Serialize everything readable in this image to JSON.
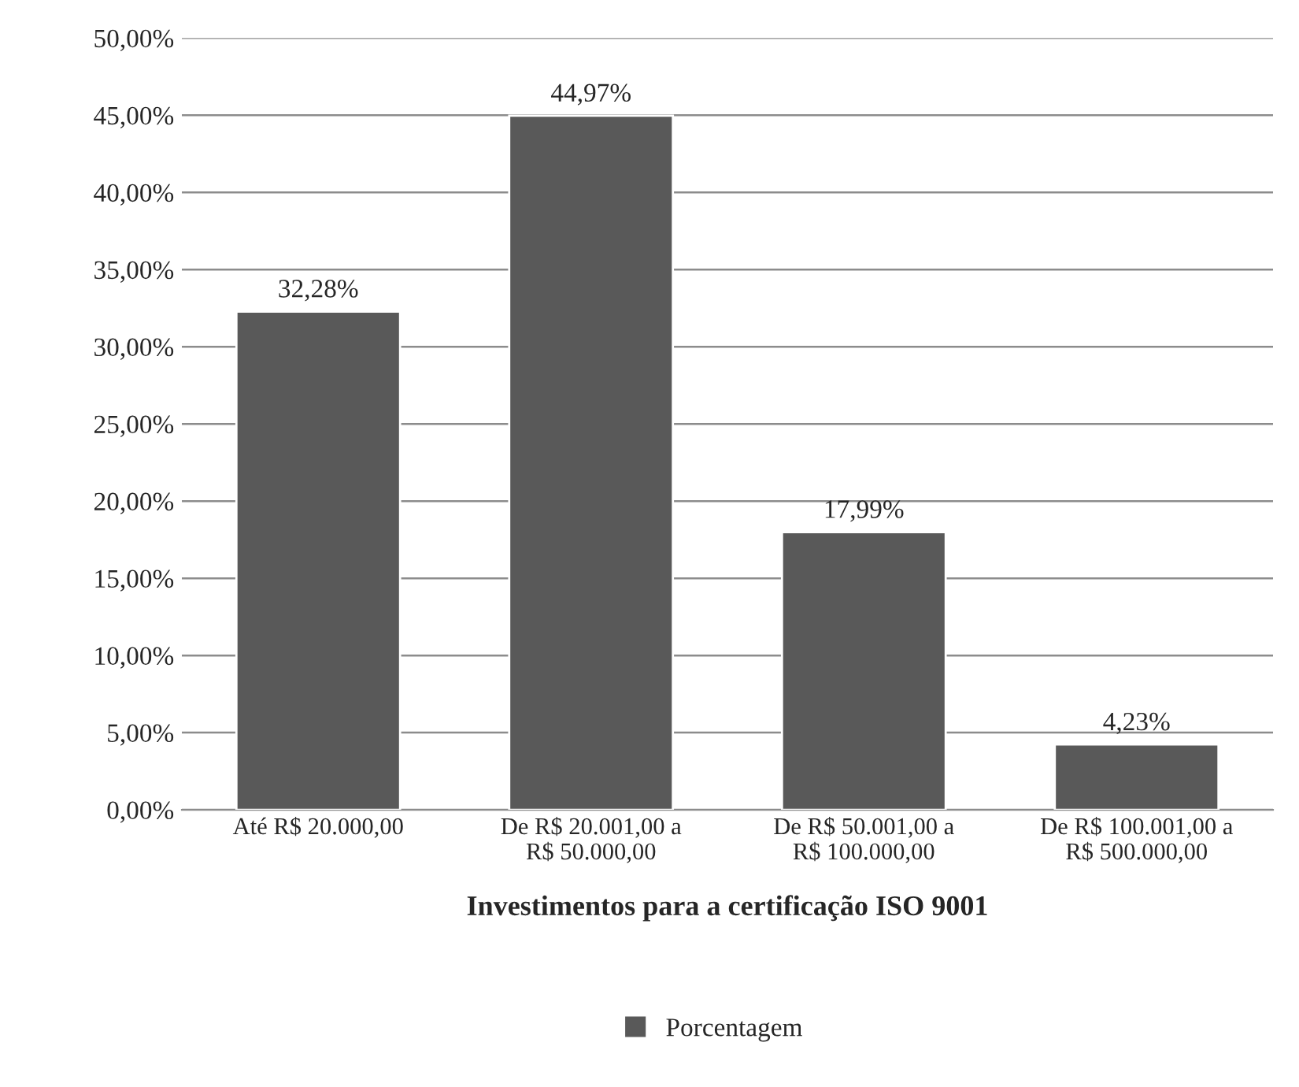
{
  "chart_data": {
    "type": "bar",
    "categories": [
      "Até R$ 20.000,00",
      "De R$ 20.001,00 a\nR$ 50.000,00",
      "De R$ 50.001,00 a\nR$ 100.000,00",
      "De R$ 100.001,00 a\nR$ 500.000,00"
    ],
    "series": [
      {
        "name": "Porcentagem",
        "color": "#595959",
        "values": [
          32.28,
          44.97,
          17.99,
          4.23
        ],
        "value_labels": [
          "32,28%",
          "44,97%",
          "17,99%",
          "4,23%"
        ]
      }
    ],
    "xlabel": "Investimentos para a certificação ISO 9001",
    "ylim": [
      0,
      50
    ],
    "yticks": [
      {
        "value": 0,
        "label": "0,00%"
      },
      {
        "value": 5,
        "label": "5,00%"
      },
      {
        "value": 10,
        "label": "10,00%"
      },
      {
        "value": 15,
        "label": "15,00%"
      },
      {
        "value": 20,
        "label": "20,00%"
      },
      {
        "value": 25,
        "label": "25,00%"
      },
      {
        "value": 30,
        "label": "30,00%"
      },
      {
        "value": 35,
        "label": "35,00%"
      },
      {
        "value": 40,
        "label": "40,00%"
      },
      {
        "value": 45,
        "label": "45,00%"
      },
      {
        "value": 50,
        "label": "50,00%"
      }
    ],
    "grid": "y",
    "legend": "bottom"
  }
}
